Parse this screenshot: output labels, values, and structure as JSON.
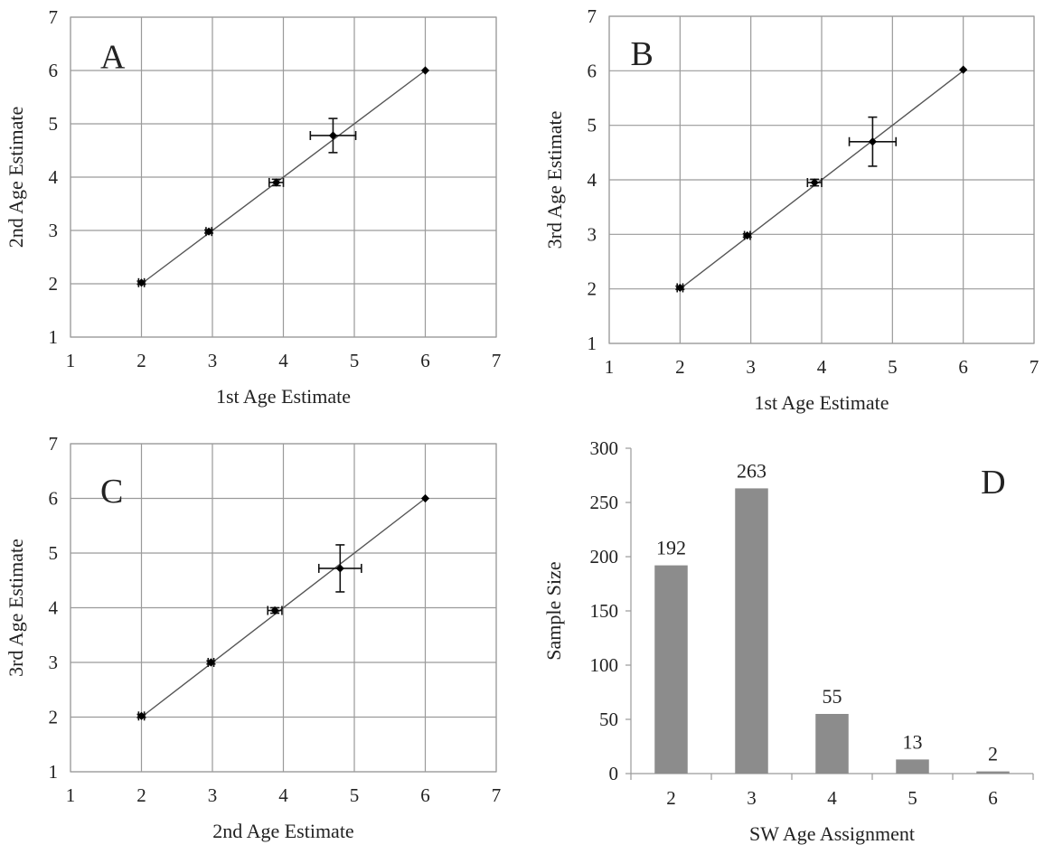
{
  "chart_data": [
    {
      "panel": "A",
      "type": "scatter",
      "panel_label": "A",
      "xlabel": "1st Age Estimate",
      "ylabel": "2nd Age Estimate",
      "xlim": [
        1,
        7
      ],
      "ylim": [
        1,
        7
      ],
      "xticks": [
        "1",
        "2",
        "3",
        "4",
        "5",
        "6",
        "7"
      ],
      "yticks": [
        "1",
        "2",
        "3",
        "4",
        "5",
        "6",
        "7"
      ],
      "grid": true,
      "trendline": {
        "from": [
          2,
          2
        ],
        "to": [
          6,
          6
        ]
      },
      "points": [
        {
          "x": 2.0,
          "y": 2.02,
          "xerr": 0.04,
          "yerr": 0.03
        },
        {
          "x": 2.95,
          "y": 2.98,
          "xerr": 0.04,
          "yerr": 0.03
        },
        {
          "x": 3.9,
          "y": 3.9,
          "xerr": 0.1,
          "yerr": 0.06
        },
        {
          "x": 4.7,
          "y": 4.78,
          "xerr": 0.32,
          "yerr": 0.32
        },
        {
          "x": 6.0,
          "y": 6.0,
          "xerr": 0,
          "yerr": 0
        }
      ]
    },
    {
      "panel": "B",
      "type": "scatter",
      "panel_label": "B",
      "xlabel": "1st Age Estimate",
      "ylabel": "3rd Age Estimate",
      "xlim": [
        1,
        7
      ],
      "ylim": [
        1,
        7
      ],
      "xticks": [
        "1",
        "2",
        "3",
        "4",
        "5",
        "6",
        "7"
      ],
      "yticks": [
        "1",
        "2",
        "3",
        "4",
        "5",
        "6",
        "7"
      ],
      "grid": true,
      "trendline": {
        "from": [
          2,
          2
        ],
        "to": [
          6,
          6
        ]
      },
      "points": [
        {
          "x": 2.0,
          "y": 2.02,
          "xerr": 0.04,
          "yerr": 0.03
        },
        {
          "x": 2.95,
          "y": 2.98,
          "xerr": 0.04,
          "yerr": 0.03
        },
        {
          "x": 3.9,
          "y": 3.95,
          "xerr": 0.1,
          "yerr": 0.06
        },
        {
          "x": 4.72,
          "y": 4.7,
          "xerr": 0.33,
          "yerr": 0.45
        },
        {
          "x": 6.0,
          "y": 6.02,
          "xerr": 0,
          "yerr": 0
        }
      ]
    },
    {
      "panel": "C",
      "type": "scatter",
      "panel_label": "C",
      "xlabel": "2nd Age Estimate",
      "ylabel": "3rd Age Estimate",
      "xlim": [
        1,
        7
      ],
      "ylim": [
        1,
        7
      ],
      "xticks": [
        "1",
        "2",
        "3",
        "4",
        "5",
        "6",
        "7"
      ],
      "yticks": [
        "1",
        "2",
        "3",
        "4",
        "5",
        "6",
        "7"
      ],
      "grid": true,
      "trendline": {
        "from": [
          2,
          2
        ],
        "to": [
          6,
          6
        ]
      },
      "points": [
        {
          "x": 2.0,
          "y": 2.02,
          "xerr": 0.04,
          "yerr": 0.03
        },
        {
          "x": 2.98,
          "y": 3.0,
          "xerr": 0.04,
          "yerr": 0.03
        },
        {
          "x": 3.88,
          "y": 3.95,
          "xerr": 0.1,
          "yerr": 0.05
        },
        {
          "x": 4.8,
          "y": 4.72,
          "xerr": 0.3,
          "yerr": 0.43
        },
        {
          "x": 6.0,
          "y": 6.0,
          "xerr": 0,
          "yerr": 0
        }
      ]
    },
    {
      "panel": "D",
      "type": "bar",
      "panel_label": "D",
      "xlabel": "SW Age Assignment",
      "ylabel": "Sample  Size",
      "categories": [
        "2",
        "3",
        "4",
        "5",
        "6"
      ],
      "values": [
        192,
        263,
        55,
        13,
        2
      ],
      "data_labels": [
        "192",
        "263",
        "55",
        "13",
        "2"
      ],
      "ylim": [
        0,
        300
      ],
      "yticks": [
        "0",
        "50",
        "100",
        "150",
        "200",
        "250",
        "300"
      ],
      "grid": false,
      "bar_color": "#8c8c8c"
    }
  ]
}
